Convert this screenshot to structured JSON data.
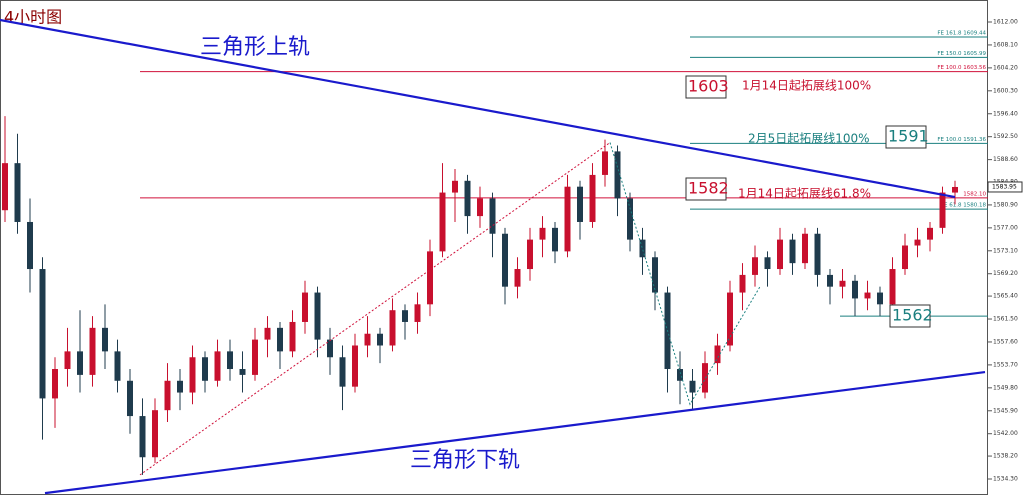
{
  "chart_data": {
    "type": "candlestick",
    "title": "4小时图",
    "up_color": "#c8102e",
    "down_color": "#1f3b4d",
    "ylim": [
      1532.43,
      1615.06
    ],
    "yticks": [
      {
        "value": 1612.0,
        "label": "1612.00"
      },
      {
        "value": 1608.1,
        "label": "1608.10"
      },
      {
        "value": 1604.2,
        "label": "1604.20"
      },
      {
        "value": 1600.3,
        "label": "1600.30"
      },
      {
        "value": 1596.4,
        "label": "1596.40"
      },
      {
        "value": 1592.5,
        "label": "1592.50"
      },
      {
        "value": 1588.6,
        "label": "1588.60"
      },
      {
        "value": 1584.8,
        "label": "1584.80"
      },
      {
        "value": 1580.9,
        "label": "1580.90"
      },
      {
        "value": 1577.0,
        "label": "1577.00"
      },
      {
        "value": 1573.1,
        "label": "1573.10"
      },
      {
        "value": 1569.2,
        "label": "1569.20"
      },
      {
        "value": 1565.4,
        "label": "1565.40"
      },
      {
        "value": 1561.5,
        "label": "1561.50"
      },
      {
        "value": 1557.6,
        "label": "1557.60"
      },
      {
        "value": 1553.7,
        "label": "1553.70"
      },
      {
        "value": 1549.8,
        "label": "1549.80"
      },
      {
        "value": 1545.9,
        "label": "1545.90"
      },
      {
        "value": 1542.0,
        "label": "1542.00"
      },
      {
        "value": 1538.2,
        "label": "1538.20"
      },
      {
        "value": 1534.3,
        "label": "1534.30"
      }
    ],
    "ohlc": [
      [
        1580,
        1596,
        1578,
        1588
      ],
      [
        1588,
        1593,
        1576,
        1578
      ],
      [
        1578,
        1582,
        1566,
        1570
      ],
      [
        1570,
        1572,
        1541,
        1548
      ],
      [
        1548,
        1555,
        1543,
        1553
      ],
      [
        1553,
        1560,
        1550,
        1556
      ],
      [
        1556,
        1563,
        1549,
        1552
      ],
      [
        1552,
        1562,
        1550,
        1560
      ],
      [
        1560,
        1564,
        1553,
        1556
      ],
      [
        1556,
        1558,
        1549,
        1551
      ],
      [
        1551,
        1553,
        1542,
        1545
      ],
      [
        1545,
        1548,
        1535,
        1538
      ],
      [
        1538,
        1548,
        1537,
        1546
      ],
      [
        1546,
        1554,
        1544,
        1551
      ],
      [
        1551,
        1553,
        1546,
        1549
      ],
      [
        1549,
        1557,
        1547,
        1555
      ],
      [
        1555,
        1556,
        1549,
        1551
      ],
      [
        1551,
        1558,
        1550,
        1556
      ],
      [
        1556,
        1558,
        1551,
        1553
      ],
      [
        1553,
        1556,
        1549,
        1552
      ],
      [
        1552,
        1560,
        1551,
        1558
      ],
      [
        1558,
        1562,
        1555,
        1560
      ],
      [
        1560,
        1561,
        1553,
        1556
      ],
      [
        1556,
        1563,
        1555,
        1561
      ],
      [
        1561,
        1568,
        1559,
        1566
      ],
      [
        1566,
        1567,
        1555,
        1558
      ],
      [
        1558,
        1560,
        1552,
        1555
      ],
      [
        1555,
        1557,
        1546,
        1550
      ],
      [
        1550,
        1559,
        1549,
        1557
      ],
      [
        1557,
        1562,
        1555,
        1559
      ],
      [
        1559,
        1560,
        1554,
        1557
      ],
      [
        1557,
        1565,
        1556,
        1563
      ],
      [
        1563,
        1564,
        1558,
        1561
      ],
      [
        1561,
        1566,
        1559,
        1564
      ],
      [
        1564,
        1575,
        1562,
        1573
      ],
      [
        1573,
        1588,
        1572,
        1583
      ],
      [
        1583,
        1587,
        1578,
        1585
      ],
      [
        1585,
        1586,
        1576,
        1579
      ],
      [
        1579,
        1584,
        1577,
        1582
      ],
      [
        1582,
        1583,
        1572,
        1576
      ],
      [
        1576,
        1577,
        1564,
        1567
      ],
      [
        1567,
        1572,
        1565,
        1570
      ],
      [
        1570,
        1577,
        1568,
        1575
      ],
      [
        1575,
        1579,
        1572,
        1577
      ],
      [
        1577,
        1578,
        1571,
        1573
      ],
      [
        1573,
        1586,
        1572,
        1584
      ],
      [
        1584,
        1585,
        1575,
        1578
      ],
      [
        1578,
        1588,
        1577,
        1586
      ],
      [
        1586,
        1592,
        1584,
        1590
      ],
      [
        1590,
        1591,
        1579,
        1582
      ],
      [
        1582,
        1583,
        1573,
        1575
      ],
      [
        1575,
        1577,
        1569,
        1572
      ],
      [
        1572,
        1573,
        1563,
        1566
      ],
      [
        1566,
        1567,
        1549,
        1553
      ],
      [
        1553,
        1556,
        1547,
        1551
      ],
      [
        1551,
        1553,
        1546,
        1549
      ],
      [
        1549,
        1556,
        1548,
        1554
      ],
      [
        1554,
        1559,
        1552,
        1557
      ],
      [
        1557,
        1568,
        1556,
        1566
      ],
      [
        1566,
        1571,
        1563,
        1569
      ],
      [
        1569,
        1574,
        1567,
        1572
      ],
      [
        1572,
        1573,
        1567,
        1570
      ],
      [
        1570,
        1577,
        1569,
        1575
      ],
      [
        1575,
        1576,
        1569,
        1571
      ],
      [
        1571,
        1577,
        1570,
        1576
      ],
      [
        1576,
        1577,
        1567,
        1569
      ],
      [
        1569,
        1570,
        1564,
        1567
      ],
      [
        1567,
        1570,
        1565,
        1568
      ],
      [
        1568,
        1569,
        1562,
        1565
      ],
      [
        1565,
        1568,
        1563,
        1566
      ],
      [
        1566,
        1567,
        1562,
        1564
      ],
      [
        1564,
        1572,
        1563,
        1570
      ],
      [
        1570,
        1576,
        1569,
        1574
      ],
      [
        1574,
        1577,
        1572,
        1575
      ],
      [
        1575,
        1578,
        1573,
        1577
      ],
      [
        1577,
        1584,
        1576,
        1583
      ],
      [
        1583,
        1585,
        1581,
        1583.95
      ]
    ],
    "current_price": {
      "value": 1583.95,
      "label": "1583.95"
    },
    "trendlines": [
      {
        "color": "#1a1acc",
        "x": [
          -0.4,
          76
        ],
        "y": [
          1612.34,
          1582.24
        ]
      },
      {
        "color": "#1a1acc",
        "x": [
          3.2,
          78.4
        ],
        "y": [
          1531.9,
          1552.48
        ]
      },
      {
        "color": "#d0103a",
        "dash": true,
        "x": [
          10.8,
          48.4
        ],
        "y": [
          1535.0,
          1591.5
        ]
      },
      {
        "color": "#1a7f7f",
        "dash": true,
        "x": [
          48.4,
          54.8,
          60.4
        ],
        "y": [
          1591.5,
          1547.0,
          1567.0
        ]
      }
    ],
    "levels": [
      {
        "value": 1609.44,
        "start": 54.8,
        "color": "#1a7f7f",
        "label": "FE 161.8  1609.44"
      },
      {
        "value": 1605.99,
        "start": 54.8,
        "color": "#1a7f7f",
        "label": "FE 150.0  1605.99"
      },
      {
        "value": 1603.56,
        "start": 10.8,
        "color": "#d0103a",
        "label": "FE 100.0  1603.56"
      },
      {
        "value": 1591.36,
        "start": 54.8,
        "color": "#1a7f7f",
        "label": "FE 100.0  1591.36"
      },
      {
        "value": 1582.1,
        "start": 10.8,
        "color": "#d0103a",
        "label": "1582.10"
      },
      {
        "value": 1580.18,
        "start": 54.8,
        "color": "#1a7f7f",
        "label": "FE 61.8  1580.18"
      },
      {
        "value": 1562,
        "start": 66.8,
        "color": "#1a7f7f"
      }
    ],
    "annotations": [
      {
        "text": "三角形上轨",
        "color": "#1a1acc"
      },
      {
        "text": "三角形下轨",
        "color": "#1a1acc"
      },
      {
        "text": "1603",
        "color": "#c8102e",
        "boxed": true
      },
      {
        "text": "1月14日起拓展线100%",
        "color": "#c8102e"
      },
      {
        "text": "1591",
        "color": "#1a7f7f",
        "boxed": true
      },
      {
        "text": "2月5日起拓展线100%",
        "color": "#1a7f7f"
      },
      {
        "text": "1582",
        "color": "#c8102e",
        "boxed": true
      },
      {
        "text": "1月14日起拓展线61.8%",
        "color": "#c8102e"
      },
      {
        "text": "1562",
        "color": "#1a7f7f",
        "boxed": true
      }
    ]
  }
}
